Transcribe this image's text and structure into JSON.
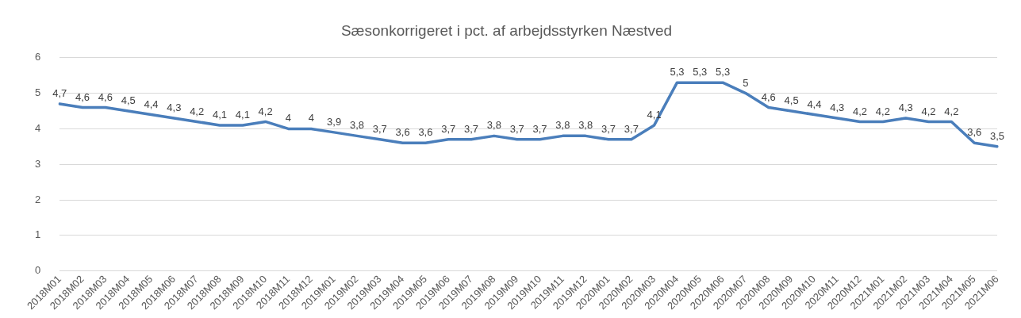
{
  "chart_data": {
    "type": "line",
    "title": "Sæsonkorrigeret i pct. af arbejdsstyrken Næstved",
    "categories": [
      "2018M01",
      "2018M02",
      "2018M03",
      "2018M04",
      "2018M05",
      "2018M06",
      "2018M07",
      "2018M08",
      "2018M09",
      "2018M10",
      "2018M11",
      "2018M12",
      "2019M01",
      "2019M02",
      "2019M03",
      "2019M04",
      "2019M05",
      "2019M06",
      "2019M07",
      "2019M08",
      "2019M09",
      "2019M10",
      "2019M11",
      "2019M12",
      "2020M01",
      "2020M02",
      "2020M03",
      "2020M04",
      "2020M05",
      "2020M06",
      "2020M07",
      "2020M08",
      "2020M09",
      "2020M10",
      "2020M11",
      "2020M12",
      "2021M01",
      "2021M02",
      "2021M03",
      "2021M04",
      "2021M05",
      "2021M06"
    ],
    "series": [
      {
        "color": "#4a7ebb",
        "values": [
          4.7,
          4.6,
          4.6,
          4.5,
          4.4,
          4.3,
          4.2,
          4.1,
          4.1,
          4.2,
          4,
          4,
          3.9,
          3.8,
          3.7,
          3.6,
          3.6,
          3.7,
          3.7,
          3.8,
          3.7,
          3.7,
          3.8,
          3.8,
          3.7,
          3.7,
          4.1,
          5.3,
          5.3,
          5.3,
          5,
          4.6,
          4.5,
          4.4,
          4.3,
          4.2,
          4.2,
          4.3,
          4.2,
          4.2,
          3.6,
          3.5
        ]
      }
    ],
    "value_labels": [
      "4,7",
      "4,6",
      "4,6",
      "4,5",
      "4,4",
      "4,3",
      "4,2",
      "4,1",
      "4,1",
      "4,2",
      "4",
      "4",
      "3,9",
      "3,8",
      "3,7",
      "3,6",
      "3,6",
      "3,7",
      "3,7",
      "3,8",
      "3,7",
      "3,7",
      "3,8",
      "3,8",
      "3,7",
      "3,7",
      "4,1",
      "5,3",
      "5,3",
      "5,3",
      "5",
      "4,6",
      "4,5",
      "4,4",
      "4,3",
      "4,2",
      "4,2",
      "4,3",
      "4,2",
      "4,2",
      "3,6",
      "3,5"
    ],
    "ylim": [
      0,
      6
    ],
    "yticks": [
      0,
      1,
      2,
      3,
      4,
      5,
      6
    ],
    "grid": "y",
    "legend": false,
    "marker": "none",
    "line_style": "solid"
  }
}
